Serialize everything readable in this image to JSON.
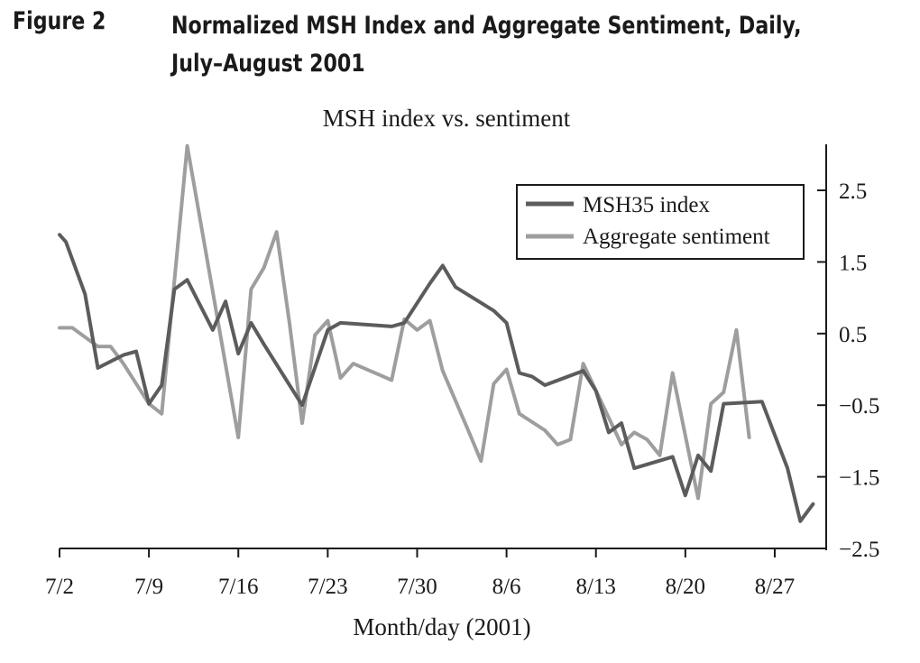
{
  "figure": {
    "label": "Figure 2",
    "title_line1": "Normalized MSH Index and Aggregate Sentiment, Daily,",
    "title_line2": "July–August 2001"
  },
  "chart_data": {
    "type": "line",
    "title": "MSH index vs. sentiment",
    "xlabel": "Month/day (2001)",
    "ylabel": "",
    "x_ticks": [
      "7/2",
      "7/9",
      "7/16",
      "7/23",
      "7/30",
      "8/6",
      "8/13",
      "8/20",
      "8/27"
    ],
    "x_range_days": [
      2,
      62
    ],
    "y_ticks": [
      2.5,
      1.5,
      0.5,
      -0.5,
      -1.5,
      -2.5
    ],
    "y_tick_labels": [
      "2.5",
      "1.5",
      "0.5",
      "−0.5",
      "−1.5",
      "−2.5"
    ],
    "ylim": [
      -2.5,
      3.1
    ],
    "y_axis_side": "right",
    "legend_position": "top-right",
    "series": [
      {
        "name": "MSH35 index",
        "color": "#5c5c5c",
        "points": [
          [
            2,
            1.88
          ],
          [
            2.5,
            1.78
          ],
          [
            4,
            1.05
          ],
          [
            5,
            0.02
          ],
          [
            7,
            0.2
          ],
          [
            8,
            0.25
          ],
          [
            9,
            -0.48
          ],
          [
            10,
            -0.22
          ],
          [
            11,
            1.12
          ],
          [
            12,
            1.25
          ],
          [
            14,
            0.55
          ],
          [
            15,
            0.95
          ],
          [
            16,
            0.22
          ],
          [
            17,
            0.65
          ],
          [
            18,
            0.35
          ],
          [
            21,
            -0.5
          ],
          [
            23,
            0.55
          ],
          [
            24,
            0.65
          ],
          [
            28,
            0.6
          ],
          [
            29,
            0.65
          ],
          [
            31,
            1.2
          ],
          [
            32,
            1.45
          ],
          [
            33,
            1.15
          ],
          [
            36,
            0.82
          ],
          [
            37,
            0.65
          ],
          [
            38,
            -0.05
          ],
          [
            39,
            -0.1
          ],
          [
            40,
            -0.22
          ],
          [
            43,
            -0.02
          ],
          [
            44,
            -0.3
          ],
          [
            45,
            -0.88
          ],
          [
            46,
            -0.75
          ],
          [
            47,
            -1.38
          ],
          [
            50,
            -1.22
          ],
          [
            51,
            -1.76
          ],
          [
            52,
            -1.2
          ],
          [
            53,
            -1.42
          ],
          [
            54,
            -0.48
          ],
          [
            57,
            -0.45
          ],
          [
            59,
            -1.38
          ],
          [
            60,
            -2.12
          ],
          [
            61,
            -1.88
          ]
        ]
      },
      {
        "name": "Aggregate sentiment",
        "color": "#9e9e9e",
        "points": [
          [
            2,
            0.58
          ],
          [
            3,
            0.58
          ],
          [
            5,
            0.32
          ],
          [
            6,
            0.32
          ],
          [
            7,
            0.08
          ],
          [
            9,
            -0.48
          ],
          [
            10,
            -0.62
          ],
          [
            12,
            3.12
          ],
          [
            16,
            -0.95
          ],
          [
            17,
            1.12
          ],
          [
            18,
            1.42
          ],
          [
            19,
            1.92
          ],
          [
            20,
            0.65
          ],
          [
            21,
            -0.75
          ],
          [
            22,
            0.48
          ],
          [
            23,
            0.68
          ],
          [
            24,
            -0.12
          ],
          [
            25,
            0.08
          ],
          [
            28,
            -0.15
          ],
          [
            29,
            0.7
          ],
          [
            30,
            0.55
          ],
          [
            31,
            0.68
          ],
          [
            32,
            -0.02
          ],
          [
            34,
            -0.85
          ],
          [
            35,
            -1.28
          ],
          [
            36,
            -0.2
          ],
          [
            37,
            0.0
          ],
          [
            38,
            -0.62
          ],
          [
            40,
            -0.85
          ],
          [
            41,
            -1.05
          ],
          [
            42,
            -0.98
          ],
          [
            43,
            0.08
          ],
          [
            46,
            -1.05
          ],
          [
            47,
            -0.88
          ],
          [
            48,
            -0.98
          ],
          [
            49,
            -1.2
          ],
          [
            50,
            -0.05
          ],
          [
            52,
            -1.8
          ],
          [
            53,
            -0.48
          ],
          [
            54,
            -0.32
          ],
          [
            55,
            0.55
          ],
          [
            56,
            -0.95
          ]
        ]
      }
    ]
  }
}
